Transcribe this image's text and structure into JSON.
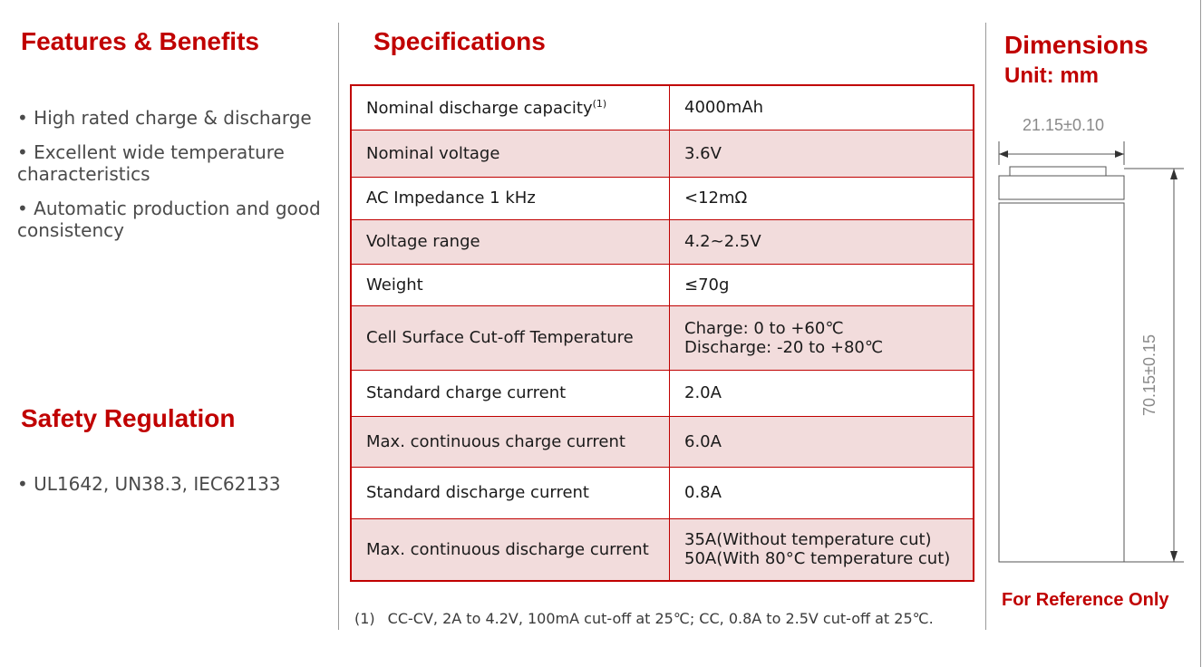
{
  "features": {
    "title": "Features & Benefits",
    "items": [
      "• High rated charge & discharge",
      "• Excellent wide temperature characteristics",
      "• Automatic production and good consistency"
    ]
  },
  "safety": {
    "title": "Safety Regulation",
    "items": [
      "• UL1642, UN38.3, IEC62133"
    ]
  },
  "specs": {
    "title": "Specifications",
    "rows": [
      {
        "label": "Nominal discharge capacity",
        "sup": "(1)",
        "value": "4000mAh"
      },
      {
        "label": "Nominal voltage",
        "value": "3.6V"
      },
      {
        "label": "AC Impedance 1 kHz",
        "value": "<12mΩ"
      },
      {
        "label": "Voltage range",
        "value": "4.2~2.5V"
      },
      {
        "label": "Weight",
        "value": "≤70g"
      },
      {
        "label": "Cell Surface Cut-off Temperature",
        "value": "Charge: 0 to +60℃",
        "value2": "Discharge: -20 to +80℃"
      },
      {
        "label": "Standard charge current",
        "value": "2.0A"
      },
      {
        "label": "Max. continuous charge current",
        "value": "6.0A"
      },
      {
        "label": "Standard discharge current",
        "value": "0.8A"
      },
      {
        "label": "Max. continuous discharge current",
        "value": "35A(Without temperature cut)",
        "value2": "50A(With 80°C temperature cut)"
      }
    ],
    "footnote_num": "(1)",
    "footnote_text": "CC-CV, 2A to 4.2V, 100mA cut-off at 25℃; CC, 0.8A to 2.5V cut-off at 25℃."
  },
  "dimensions": {
    "title": "Dimensions",
    "unit": "Unit: mm",
    "diameter": "21.15±0.10",
    "height": "70.15±0.15",
    "note": "For Reference Only"
  },
  "colors": {
    "accent": "#c00000",
    "row_shade": "#f2dcdc"
  }
}
